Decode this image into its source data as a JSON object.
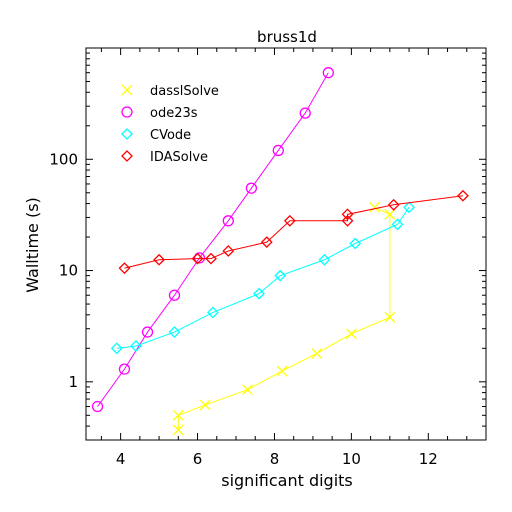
{
  "chart_data": {
    "type": "line",
    "title": "bruss1d",
    "xlabel": "significant digits",
    "ylabel": "Walltime (s)",
    "xlim": [
      3.1,
      13.5
    ],
    "ylim": [
      0.3,
      1000
    ],
    "y_scale": "log",
    "x_ticks": [
      4,
      6,
      8,
      10,
      12
    ],
    "x_tick_labels": [
      "4",
      "6",
      "8",
      "10",
      "12"
    ],
    "y_ticks": [
      1,
      10,
      100
    ],
    "y_tick_labels": [
      "1",
      "10",
      "100"
    ],
    "grid": false,
    "legend_position": "top-left",
    "series": [
      {
        "name": "dasslSolve",
        "color": "#ffff00",
        "marker": "x",
        "x": [
          5.5,
          5.5,
          6.2,
          7.3,
          8.2,
          9.1,
          10.0,
          11.0,
          11.0,
          10.6
        ],
        "y": [
          0.37,
          0.5,
          0.62,
          0.85,
          1.25,
          1.8,
          2.7,
          3.8,
          32,
          37
        ]
      },
      {
        "name": "ode23s",
        "color": "#ff00ff",
        "marker": "circle",
        "x": [
          3.4,
          4.1,
          4.7,
          5.4,
          6.05,
          6.8,
          7.4,
          8.1,
          8.8,
          9.4
        ],
        "y": [
          0.6,
          1.3,
          2.8,
          6.0,
          13,
          28,
          55,
          120,
          260,
          600
        ]
      },
      {
        "name": "CVode",
        "color": "#00ffff",
        "marker": "diamond",
        "x": [
          3.9,
          4.4,
          5.4,
          6.4,
          7.6,
          8.15,
          9.3,
          10.1,
          11.2,
          11.5
        ],
        "y": [
          2.0,
          2.1,
          2.8,
          4.2,
          6.2,
          9.0,
          12.5,
          17.5,
          26,
          37
        ]
      },
      {
        "name": "IDASolve",
        "color": "#ff0000",
        "marker": "diamond",
        "x": [
          4.1,
          5.0,
          6.0,
          6.35,
          6.8,
          7.8,
          8.4,
          9.9,
          9.9,
          11.1,
          12.9
        ],
        "y": [
          10.5,
          12.5,
          12.8,
          12.8,
          15,
          18,
          28,
          28,
          32,
          39,
          47
        ]
      }
    ]
  }
}
